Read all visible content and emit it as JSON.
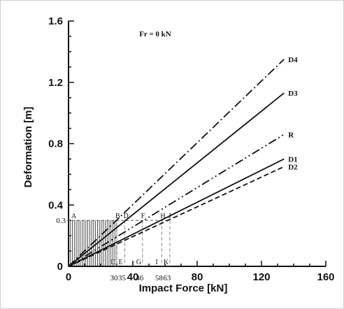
{
  "chart_data": {
    "type": "line",
    "xlabel": "Impact Force [kN]",
    "ylabel": "Deformation [m]",
    "xlim": [
      0,
      160
    ],
    "ylim": [
      0,
      1.6
    ],
    "xticks": [
      "0",
      "40",
      "80",
      "120",
      "160"
    ],
    "yticks": [
      "0",
      "0.4",
      "0.8",
      "1.2",
      "1.6"
    ],
    "annotation": "Fr = 0 kN",
    "series": [
      {
        "name": "D4",
        "style": "dash-dot",
        "x": [
          0,
          134
        ],
        "y": [
          0,
          1.35
        ]
      },
      {
        "name": "D3",
        "style": "solid",
        "x": [
          0,
          134
        ],
        "y": [
          0,
          1.13
        ]
      },
      {
        "name": "R",
        "style": "dash-dot-dot",
        "x": [
          0,
          134
        ],
        "y": [
          0,
          0.86
        ]
      },
      {
        "name": "D1",
        "style": "solid",
        "x": [
          0,
          134
        ],
        "y": [
          0,
          0.7
        ]
      },
      {
        "name": "D2",
        "style": "dashed",
        "x": [
          0,
          134
        ],
        "y": [
          0,
          0.65
        ]
      }
    ],
    "reference": {
      "y_value": 0.3,
      "y_label": "0.3",
      "hatched_x_end": 30,
      "points": [
        {
          "top": "A",
          "x": 0
        },
        {
          "top": "B",
          "bottom": "C",
          "x": 30,
          "value_label": "30"
        },
        {
          "top": "D",
          "bottom": "E",
          "x": 35,
          "value_label": "35"
        },
        {
          "top": "F",
          "bottom": "G",
          "x": 46,
          "value_label": "46"
        },
        {
          "top": "H",
          "bottom": "I",
          "x": 58,
          "value_label": "58"
        },
        {
          "top": "J",
          "bottom": "K",
          "x": 63,
          "value_label": "63"
        }
      ]
    }
  }
}
